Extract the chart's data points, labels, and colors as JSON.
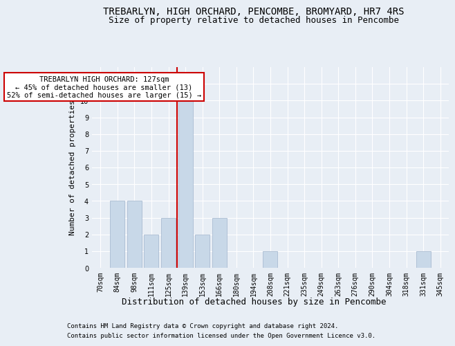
{
  "title1": "TREBARLYN, HIGH ORCHARD, PENCOMBE, BROMYARD, HR7 4RS",
  "title2": "Size of property relative to detached houses in Pencombe",
  "xlabel": "Distribution of detached houses by size in Pencombe",
  "ylabel": "Number of detached properties",
  "categories": [
    "70sqm",
    "84sqm",
    "98sqm",
    "111sqm",
    "125sqm",
    "139sqm",
    "153sqm",
    "166sqm",
    "180sqm",
    "194sqm",
    "208sqm",
    "221sqm",
    "235sqm",
    "249sqm",
    "263sqm",
    "276sqm",
    "290sqm",
    "304sqm",
    "318sqm",
    "331sqm",
    "345sqm"
  ],
  "values": [
    0,
    4,
    4,
    2,
    3,
    10,
    2,
    3,
    0,
    0,
    1,
    0,
    0,
    0,
    0,
    0,
    0,
    0,
    0,
    1,
    0
  ],
  "bar_color": "#c8d8e8",
  "bar_edgecolor": "#a0b4cc",
  "ref_line_index": 5,
  "ref_line_color": "#cc0000",
  "annotation_line1": "TREBARLYN HIGH ORCHARD: 127sqm",
  "annotation_line2": "← 45% of detached houses are smaller (13)",
  "annotation_line3": "52% of semi-detached houses are larger (15) →",
  "annotation_box_facecolor": "#ffffff",
  "annotation_box_edgecolor": "#cc0000",
  "ylim_max": 12,
  "footer1": "Contains HM Land Registry data © Crown copyright and database right 2024.",
  "footer2": "Contains public sector information licensed under the Open Government Licence v3.0.",
  "fig_facecolor": "#e8eef5",
  "ax_facecolor": "#e8eef5",
  "grid_color": "#ffffff",
  "title1_fontsize": 10,
  "title2_fontsize": 9,
  "ylabel_fontsize": 8,
  "xlabel_fontsize": 9,
  "tick_fontsize": 7,
  "annot_fontsize": 7.5,
  "footer_fontsize": 6.5
}
